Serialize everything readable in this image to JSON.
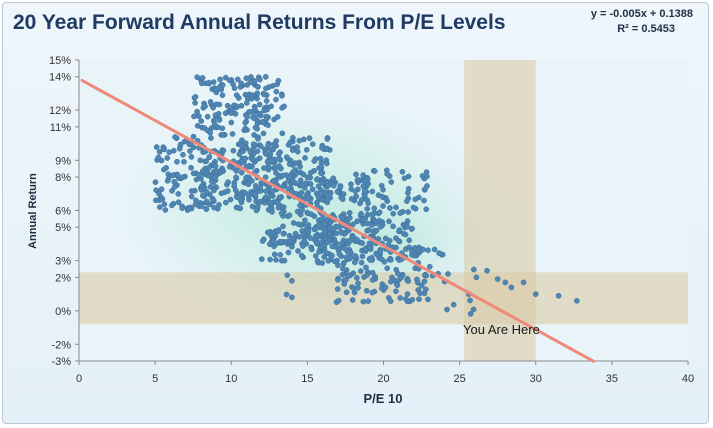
{
  "chart_data": {
    "type": "scatter",
    "title": "20 Year Forward Annual Returns From P/E Levels",
    "xlabel": "P/E 10",
    "ylabel": "Annual Return",
    "xlim": [
      0,
      40
    ],
    "ylim": [
      -3,
      15
    ],
    "x_ticks": [
      0,
      5,
      10,
      15,
      20,
      25,
      30,
      35,
      40
    ],
    "y_ticks": [
      -3,
      -2,
      0,
      2,
      3,
      5,
      6,
      8,
      9,
      11,
      12,
      14,
      15
    ],
    "y_tick_labels": [
      "-3%",
      "-2%",
      "0%",
      "2%",
      "3%",
      "5%",
      "6%",
      "8%",
      "9%",
      "11%",
      "12%",
      "14%",
      "15%"
    ],
    "grid": false,
    "trendline": {
      "equation": "y = -0.005x + 0.1388",
      "r_squared": "R² = 0.5453",
      "color": "#f0897a"
    },
    "point_color": "#4f86b4",
    "highlight": {
      "label": "You Are Here",
      "x_band": [
        25.3,
        30.0
      ],
      "y_band": [
        -0.8,
        2.3
      ],
      "color": "#d9c9a0"
    },
    "clusters": [
      {
        "x": [
          7.5,
          13.5
        ],
        "y": [
          10.5,
          14.0
        ],
        "n": 160
      },
      {
        "x": [
          5.0,
          9.0
        ],
        "y": [
          6.0,
          10.5
        ],
        "n": 110
      },
      {
        "x": [
          8.0,
          13.0
        ],
        "y": [
          6.0,
          10.0
        ],
        "n": 150
      },
      {
        "x": [
          10.5,
          16.5
        ],
        "y": [
          6.5,
          10.5
        ],
        "n": 150
      },
      {
        "x": [
          12.5,
          17.5
        ],
        "y": [
          4.0,
          8.0
        ],
        "n": 130
      },
      {
        "x": [
          14.0,
          20.0
        ],
        "y": [
          4.0,
          8.0
        ],
        "n": 110
      },
      {
        "x": [
          18.0,
          23.0
        ],
        "y": [
          5.8,
          8.5
        ],
        "n": 55
      },
      {
        "x": [
          16.0,
          22.0
        ],
        "y": [
          3.0,
          5.5
        ],
        "n": 100
      },
      {
        "x": [
          12.0,
          17.0
        ],
        "y": [
          2.8,
          5.0
        ],
        "n": 60
      },
      {
        "x": [
          17.0,
          24.0
        ],
        "y": [
          1.8,
          3.8
        ],
        "n": 80
      },
      {
        "x": [
          16.5,
          23.0
        ],
        "y": [
          0.5,
          2.2
        ],
        "n": 55
      },
      {
        "x": [
          13.5,
          14.0
        ],
        "y": [
          0.8,
          2.5
        ],
        "n": 4
      },
      {
        "x": [
          24.0,
          26.0
        ],
        "y": [
          -0.3,
          2.5
        ],
        "n": 8
      }
    ],
    "outliers": [
      {
        "x": 26.8,
        "y": 2.4
      },
      {
        "x": 27.5,
        "y": 1.9
      },
      {
        "x": 28.0,
        "y": 1.7
      },
      {
        "x": 28.4,
        "y": 1.4
      },
      {
        "x": 29.2,
        "y": 1.7
      },
      {
        "x": 30.0,
        "y": 1.0
      },
      {
        "x": 31.5,
        "y": 0.9
      },
      {
        "x": 32.7,
        "y": 0.6
      },
      {
        "x": 26.1,
        "y": 2.0
      },
      {
        "x": 25.6,
        "y": 1.0
      }
    ]
  }
}
